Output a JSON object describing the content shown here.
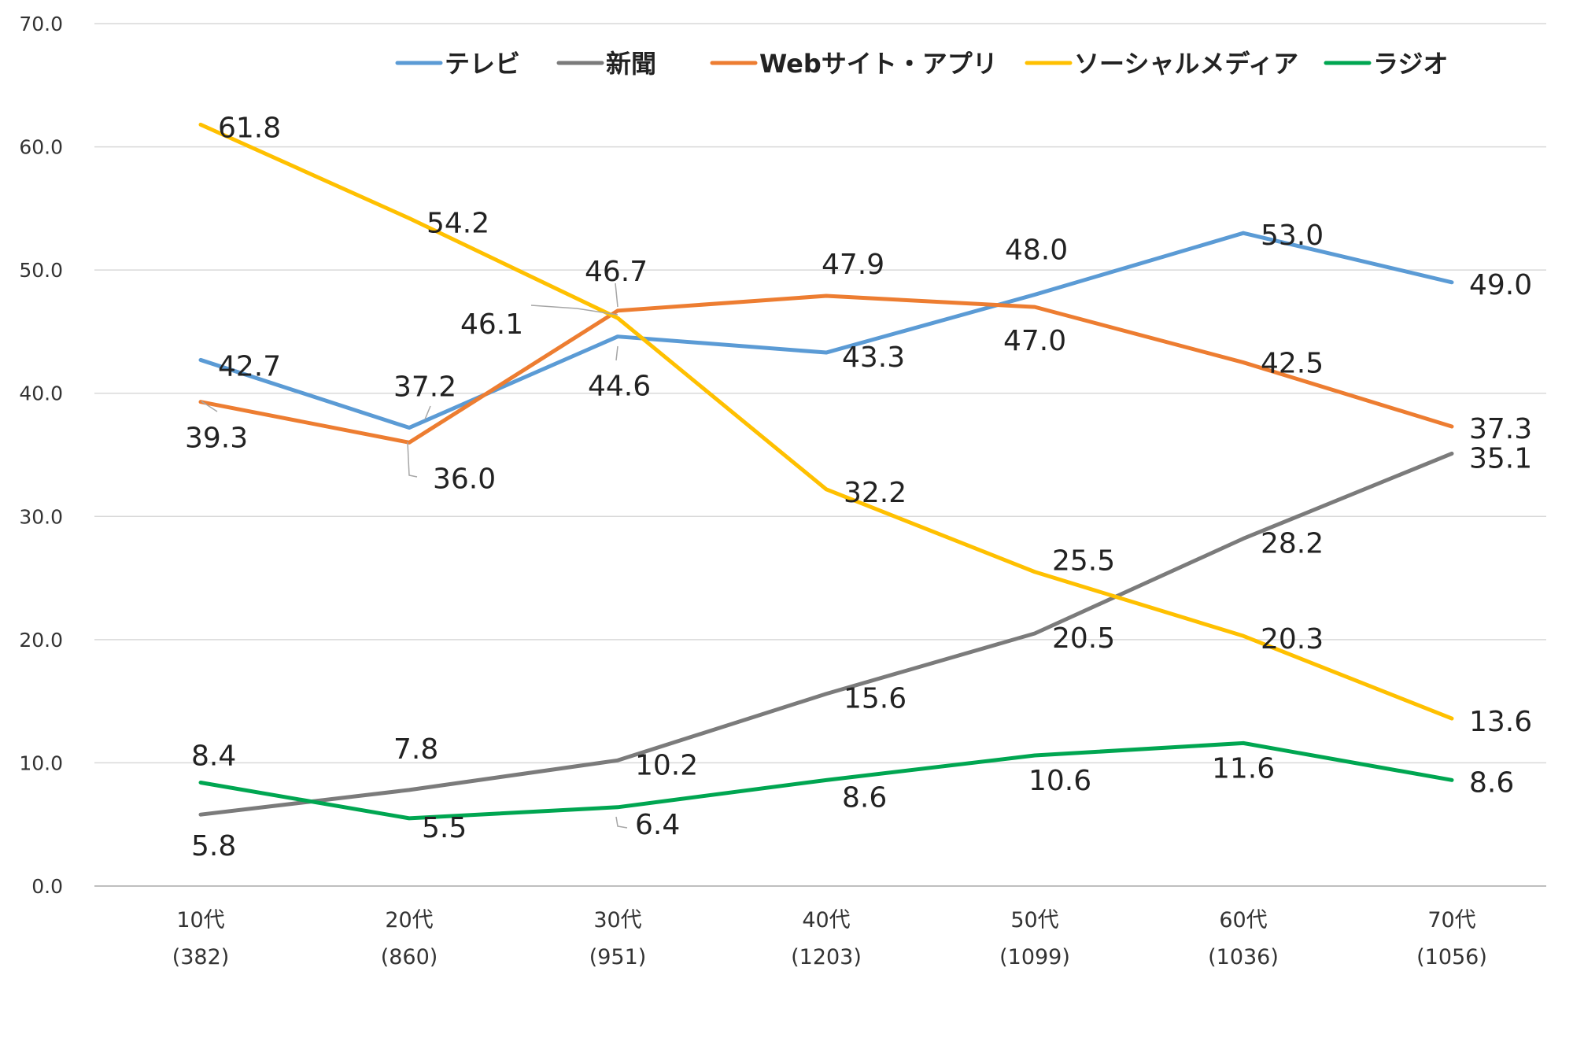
{
  "chart_data": {
    "type": "line",
    "title": "",
    "xlabel": "",
    "ylabel": "",
    "ylim": [
      0,
      70
    ],
    "yticks": [
      "0.0",
      "10.0",
      "20.0",
      "30.0",
      "40.0",
      "50.0",
      "60.0",
      "70.0"
    ],
    "grid": true,
    "legend_position": "top",
    "categories": [
      "10代",
      "20代",
      "30代",
      "40代",
      "50代",
      "60代",
      "70代"
    ],
    "category_counts": [
      "(382)",
      "(860)",
      "(951)",
      "(1203)",
      "(1099)",
      "(1036)",
      "(1056)"
    ],
    "series": [
      {
        "name": "テレビ",
        "color": "#5B9BD5",
        "values": [
          42.7,
          37.2,
          44.6,
          43.3,
          48.0,
          53.0,
          49.0
        ],
        "labels": [
          "42.7",
          "37.2",
          "44.6",
          "43.3",
          "48.0",
          "53.0",
          "49.0"
        ]
      },
      {
        "name": "新聞",
        "color": "#7B7B7B",
        "values": [
          5.8,
          7.8,
          10.2,
          15.6,
          20.5,
          28.2,
          35.1
        ],
        "labels": [
          "5.8",
          "7.8",
          "10.2",
          "15.6",
          "20.5",
          "28.2",
          "35.1"
        ]
      },
      {
        "name": "Webサイト・アプリ",
        "color": "#ED7D31",
        "values": [
          39.3,
          36.0,
          46.7,
          47.9,
          47.0,
          42.5,
          37.3
        ],
        "labels": [
          "39.3",
          "36.0",
          "46.7",
          "47.9",
          "47.0",
          "42.5",
          "37.3"
        ]
      },
      {
        "name": "ソーシャルメディア",
        "color": "#FFC000",
        "values": [
          61.8,
          54.2,
          46.1,
          32.2,
          25.5,
          20.3,
          13.6
        ],
        "labels": [
          "61.8",
          "54.2",
          "46.1",
          "32.2",
          "25.5",
          "20.3",
          "13.6"
        ]
      },
      {
        "name": "ラジオ",
        "color": "#00A651",
        "values": [
          8.4,
          5.5,
          6.4,
          8.6,
          10.6,
          11.6,
          8.6
        ],
        "labels": [
          "8.4",
          "5.5",
          "6.4",
          "8.6",
          "10.6",
          "11.6",
          "8.6"
        ]
      }
    ]
  }
}
